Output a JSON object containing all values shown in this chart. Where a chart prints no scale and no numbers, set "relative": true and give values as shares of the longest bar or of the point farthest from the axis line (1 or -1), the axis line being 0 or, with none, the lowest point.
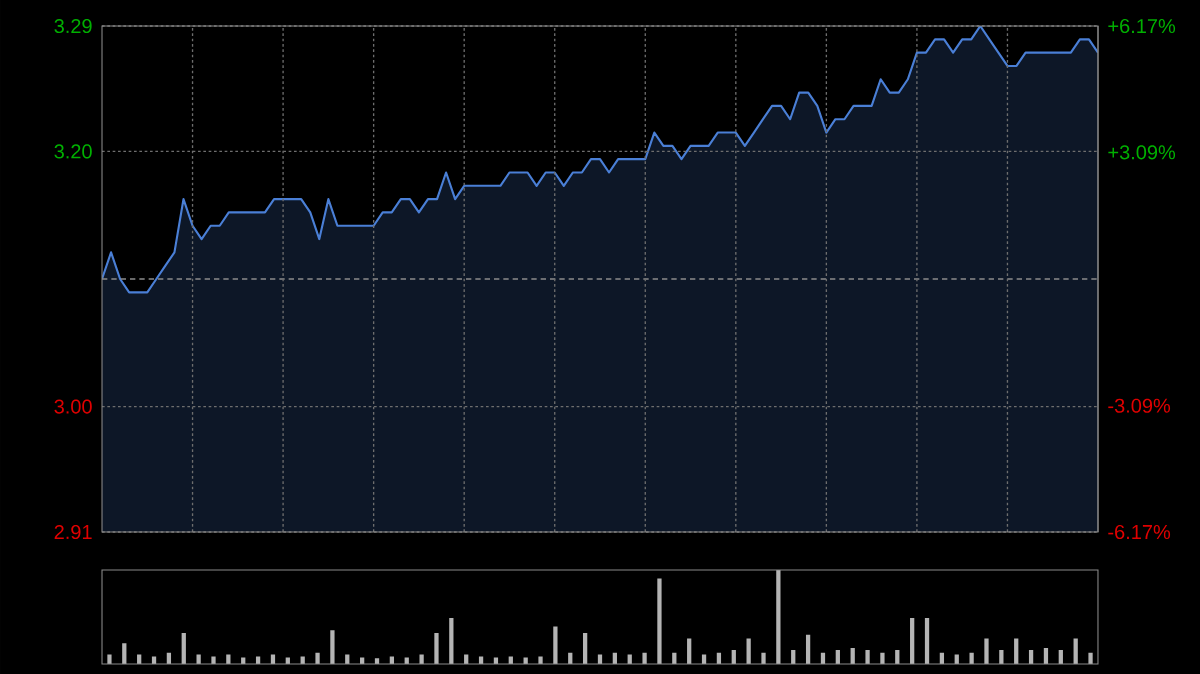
{
  "chart_data": [
    {
      "type": "area",
      "categories": [
        null,
        null,
        null,
        null,
        null,
        null,
        null,
        null,
        null,
        null,
        null,
        null,
        null,
        null,
        null,
        null,
        null,
        null,
        null,
        null,
        null,
        null,
        null,
        null,
        null,
        null,
        null,
        null,
        null,
        null,
        null,
        null,
        null,
        null,
        null,
        null,
        null,
        null,
        null,
        null,
        null,
        null,
        null,
        null,
        null,
        null,
        null,
        null,
        null,
        null,
        null,
        null,
        null,
        null,
        null,
        null,
        null,
        null,
        null,
        null,
        null,
        null,
        null,
        null,
        null,
        null,
        null,
        null,
        null,
        null,
        null,
        null,
        null,
        null,
        null,
        null,
        null,
        null,
        null,
        null,
        null,
        null,
        null,
        null,
        null,
        null,
        null,
        null,
        null,
        null,
        null,
        null,
        null,
        null,
        null,
        null,
        null,
        null,
        null,
        null,
        null,
        null,
        null,
        null,
        null,
        null,
        null,
        null,
        null,
        null,
        null
      ],
      "series": [
        {
          "color": "#4a7fd6",
          "values": [
            3.1,
            3.12,
            3.1,
            3.09,
            3.09,
            3.09,
            3.1,
            3.11,
            3.12,
            3.16,
            3.14,
            3.13,
            3.14,
            3.14,
            3.15,
            3.15,
            3.15,
            3.15,
            3.15,
            3.16,
            3.16,
            3.16,
            3.16,
            3.15,
            3.13,
            3.16,
            3.14,
            3.14,
            3.14,
            3.14,
            3.14,
            3.15,
            3.15,
            3.16,
            3.16,
            3.15,
            3.16,
            3.16,
            3.18,
            3.16,
            3.17,
            3.17,
            3.17,
            3.17,
            3.17,
            3.18,
            3.18,
            3.18,
            3.17,
            3.18,
            3.18,
            3.17,
            3.18,
            3.18,
            3.19,
            3.19,
            3.18,
            3.19,
            3.19,
            3.19,
            3.19,
            3.21,
            3.2,
            3.2,
            3.19,
            3.2,
            3.2,
            3.2,
            3.21,
            3.21,
            3.21,
            3.2,
            3.21,
            3.22,
            3.23,
            3.23,
            3.22,
            3.24,
            3.24,
            3.23,
            3.21,
            3.22,
            3.22,
            3.23,
            3.23,
            3.23,
            3.25,
            3.24,
            3.24,
            3.25,
            3.27,
            3.27,
            3.28,
            3.28,
            3.27,
            3.28,
            3.28,
            3.29,
            3.28,
            3.27,
            3.26,
            3.26,
            3.27,
            3.27,
            3.27,
            3.27,
            3.27,
            3.27,
            3.28,
            3.28,
            3.27
          ]
        }
      ],
      "ylim": [
        2.91,
        3.29
      ],
      "yticks": [
        2.91,
        {
          "value": 3.0042,
          "label": "3.00"
        },
        {
          "value": 3.1958,
          "label": "3.20"
        },
        3.29
      ],
      "y2lim": [
        -6.17,
        6.17
      ],
      "y2ticks": [
        {
          "value": -6.17,
          "label": "-6.17%"
        },
        {
          "value": -3.09,
          "label": "-3.09%"
        },
        {
          "value": 3.09,
          "label": "+3.09%"
        },
        {
          "value": 6.17,
          "label": "+6.17%"
        }
      ],
      "ref_lines": [
        {
          "axis": "y",
          "value": 3.1,
          "color": "#8c8c8c",
          "line_style": "dashed"
        }
      ],
      "grid": true,
      "tick_labels": "y"
    },
    {
      "type": "bar",
      "relative": true,
      "categories": [
        null,
        null,
        null,
        null,
        null,
        null,
        null,
        null,
        null,
        null,
        null,
        null,
        null,
        null,
        null,
        null,
        null,
        null,
        null,
        null,
        null,
        null,
        null,
        null,
        null,
        null,
        null,
        null,
        null,
        null,
        null,
        null,
        null,
        null,
        null,
        null,
        null,
        null,
        null,
        null,
        null,
        null,
        null,
        null,
        null,
        null,
        null,
        null,
        null,
        null,
        null,
        null,
        null,
        null,
        null,
        null,
        null,
        null,
        null,
        null,
        null,
        null,
        null,
        null,
        null,
        null,
        null
      ],
      "series": [
        {
          "color": "#b4b4b4",
          "values": [
            0.1,
            0.22,
            0.1,
            0.08,
            0.12,
            0.33,
            0.1,
            0.08,
            0.1,
            0.07,
            0.08,
            0.1,
            0.07,
            0.08,
            0.12,
            0.36,
            0.1,
            0.07,
            0.06,
            0.08,
            0.07,
            0.1,
            0.33,
            0.49,
            0.1,
            0.08,
            0.07,
            0.08,
            0.07,
            0.08,
            0.4,
            0.12,
            0.33,
            0.1,
            0.12,
            0.1,
            0.12,
            0.91,
            0.12,
            0.27,
            0.1,
            0.12,
            0.15,
            0.27,
            0.12,
            1,
            0.15,
            0.31,
            0.12,
            0.15,
            0.17,
            0.15,
            0.12,
            0.15,
            0.49,
            0.49,
            0.12,
            0.1,
            0.12,
            0.27,
            0.15,
            0.27,
            0.15,
            0.17,
            0.15,
            0.27,
            0.12
          ]
        }
      ],
      "tick_labels": false
    }
  ]
}
